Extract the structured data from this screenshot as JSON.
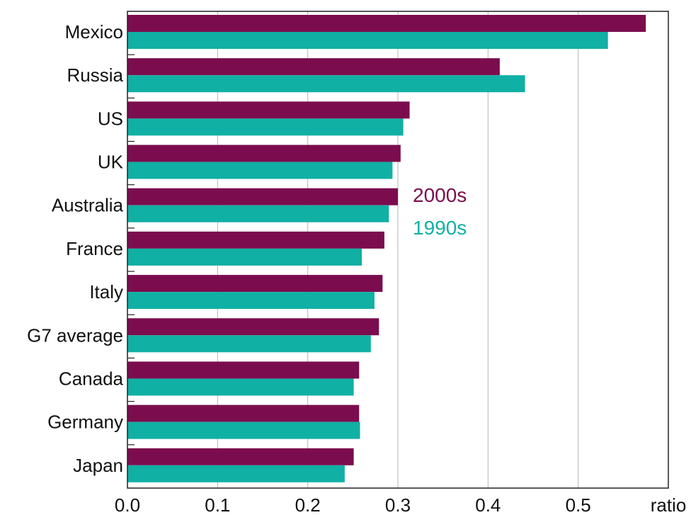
{
  "chart_data": {
    "type": "bar",
    "orientation": "horizontal",
    "categories": [
      "Mexico",
      "Russia",
      "US",
      "UK",
      "Australia",
      "France",
      "Italy",
      "G7 average",
      "Canada",
      "Germany",
      "Japan"
    ],
    "series": [
      {
        "name": "2000s",
        "color": "#7b0d4e",
        "values": [
          0.575,
          0.413,
          0.313,
          0.303,
          0.3,
          0.285,
          0.283,
          0.279,
          0.257,
          0.257,
          0.251
        ]
      },
      {
        "name": "1990s",
        "color": "#11b0a4",
        "values": [
          0.533,
          0.441,
          0.306,
          0.294,
          0.29,
          0.26,
          0.274,
          0.27,
          0.251,
          0.258,
          0.241
        ]
      }
    ],
    "xlim": [
      0,
      0.6
    ],
    "x_ticks": [
      "0.0",
      "0.1",
      "0.2",
      "0.3",
      "0.4",
      "0.5"
    ],
    "x_unit": "ratio",
    "grid": "vertical",
    "legend_position": "center-right"
  }
}
